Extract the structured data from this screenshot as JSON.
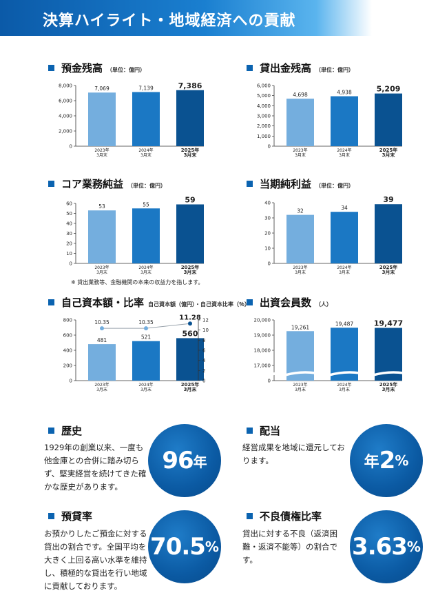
{
  "header": {
    "title": "決算ハイライト・地域経済への貢献"
  },
  "sections": {
    "deposits": {
      "title": "預金残高",
      "unit": "（単位：億円）"
    },
    "loans": {
      "title": "貸出金残高",
      "unit": "（単位：億円）"
    },
    "core": {
      "title": "コア業務純益",
      "unit": "（単位：億円）",
      "note": "※ 貸出業務等、金融機関の本来の収益力を指します。"
    },
    "netincome": {
      "title": "当期純利益",
      "unit": "（単位：億円）"
    },
    "capital": {
      "title": "自己資本額・比率",
      "unit": "自己資本額（億円）・自己資本比率（％）"
    },
    "members": {
      "title": "出資会員数",
      "unit": "（人）"
    }
  },
  "chart_data": [
    {
      "id": "deposits",
      "type": "bar",
      "categories": [
        "2023年\n3月末",
        "2024年\n3月末",
        "2025年\n3月末"
      ],
      "values": [
        7069,
        7139,
        7386
      ],
      "value_labels": [
        "7,069",
        "7,139",
        "7,386"
      ],
      "yticks": [
        "0",
        "2,000",
        "4,000",
        "6,000",
        "8,000"
      ],
      "ylim": [
        0,
        8000
      ]
    },
    {
      "id": "loans",
      "type": "bar",
      "categories": [
        "2023年\n3月末",
        "2024年\n3月末",
        "2025年\n3月末"
      ],
      "values": [
        4698,
        4938,
        5209
      ],
      "value_labels": [
        "4,698",
        "4,938",
        "5,209"
      ],
      "yticks": [
        "0",
        "1,000",
        "2,000",
        "3,000",
        "4,000",
        "5,000",
        "6,000"
      ],
      "ylim": [
        0,
        6000
      ]
    },
    {
      "id": "core",
      "type": "bar",
      "categories": [
        "2023年\n3月末",
        "2024年\n3月末",
        "2025年\n3月末"
      ],
      "values": [
        53,
        55,
        59
      ],
      "value_labels": [
        "53",
        "55",
        "59"
      ],
      "yticks": [
        "0",
        "10",
        "20",
        "30",
        "40",
        "50",
        "60"
      ],
      "ylim": [
        0,
        60
      ]
    },
    {
      "id": "netincome",
      "type": "bar",
      "categories": [
        "2023年\n3月末",
        "2024年\n3月末",
        "2025年\n3月末"
      ],
      "values": [
        32,
        34,
        39
      ],
      "value_labels": [
        "32",
        "34",
        "39"
      ],
      "yticks": [
        "0",
        "10",
        "20",
        "30",
        "40"
      ],
      "ylim": [
        0,
        40
      ]
    },
    {
      "id": "capital",
      "type": "bar",
      "categories": [
        "2023年\n3月末",
        "2024年\n3月末",
        "2025年\n3月末"
      ],
      "values": [
        481,
        521,
        560
      ],
      "value_labels": [
        "481",
        "521",
        "560"
      ],
      "yticks": [
        "0",
        "200",
        "400",
        "600",
        "800"
      ],
      "ylim": [
        0,
        800
      ],
      "line_series": {
        "values": [
          10.35,
          10.35,
          11.28
        ],
        "value_labels": [
          "10.35",
          "10.35",
          "11.28"
        ],
        "yticks": [
          "0",
          "2",
          "4",
          "6",
          "8",
          "10",
          "12"
        ],
        "ylim": [
          0,
          12
        ]
      }
    },
    {
      "id": "members",
      "type": "bar",
      "categories": [
        "2023年\n3月末",
        "2024年\n3月末",
        "2025年\n3月末"
      ],
      "values": [
        19261,
        19487,
        19477
      ],
      "value_labels": [
        "19,261",
        "19,487",
        "19,477"
      ],
      "yticks": [
        "0",
        "17,000",
        "18,000",
        "19,000",
        "20,000"
      ],
      "ylim": [
        17000,
        20000
      ],
      "axis_break": true
    }
  ],
  "colors": {
    "bar1": "#74aede",
    "bar2": "#1b78c4",
    "bar3": "#0a5291",
    "accent": "#0b63b0",
    "line": "#9aa4ad"
  },
  "info": {
    "history": {
      "title": "歴史",
      "text": "1929年の創業以来、一度も他金庫との合併に踏み切らず、堅実経営を続けてきた確かな歴史があります。",
      "value": "96",
      "suffix": "年"
    },
    "dividend": {
      "title": "配当",
      "text": "経営成果を地域に還元しております。",
      "prefix": "年",
      "value": "2",
      "suffix": "%"
    },
    "ldr": {
      "title": "預貸率",
      "text": "お預かりしたご預金に対する貸出の割合です。全国平均を大きく上回る高い水準を維持し、積極的な貸出を行い地域に貢献しております。",
      "value": "70.5",
      "suffix": "%"
    },
    "npl": {
      "title": "不良債権比率",
      "text": "貸出に対する不良（返済困難・返済不能等）の割合です。",
      "value": "3.63",
      "suffix": "%"
    }
  }
}
